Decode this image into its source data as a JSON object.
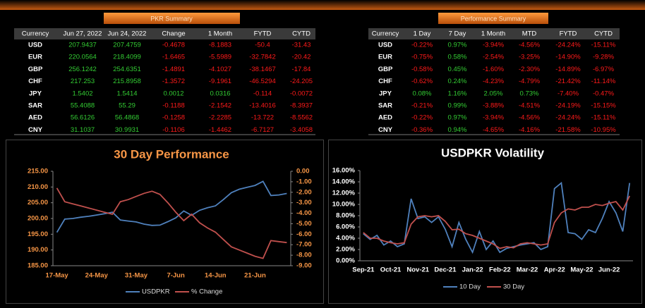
{
  "pkr_summary": {
    "title": "PKR Summary",
    "columns": [
      "Currency",
      "Jun 27, 2022",
      "Jun 24, 2022",
      "Change",
      "1 Month",
      "FYTD",
      "CYTD"
    ],
    "rows": [
      [
        "USD",
        "207.9437",
        "207.4759",
        "-0.4678",
        "-8.1883",
        "-50.4",
        "-31.43"
      ],
      [
        "EUR",
        "220.0564",
        "218.4099",
        "-1.6465",
        "-5.5989",
        "-32.7842",
        "-20.42"
      ],
      [
        "GBP",
        "256.1242",
        "254.6351",
        "-1.4891",
        "-4.1027",
        "-38.1467",
        "-17.84"
      ],
      [
        "CHF",
        "217.253",
        "215.8958",
        "-1.3572",
        "-9.1961",
        "-46.5294",
        "-24.205"
      ],
      [
        "JPY",
        "1.5402",
        "1.5414",
        "0.0012",
        "0.0316",
        "-0.114",
        "-0.0072"
      ],
      [
        "SAR",
        "55.4088",
        "55.29",
        "-0.1188",
        "-2.1542",
        "-13.4016",
        "-8.3937"
      ],
      [
        "AED",
        "56.6126",
        "56.4868",
        "-0.1258",
        "-2.2285",
        "-13.722",
        "-8.5562"
      ],
      [
        "CNY",
        "31.1037",
        "30.9931",
        "-0.1106",
        "-1.4462",
        "-6.7127",
        "-3.4058"
      ]
    ]
  },
  "performance_summary": {
    "title": "Performance Summary",
    "columns": [
      "Currency",
      "1 Day",
      "7 Day",
      "1 Month",
      "MTD",
      "FYTD",
      "CYTD"
    ],
    "rows": [
      [
        "USD",
        "-0.22%",
        "0.97%",
        "-3.94%",
        "-4.56%",
        "-24.24%",
        "-15.11%"
      ],
      [
        "EUR",
        "-0.75%",
        "0.58%",
        "-2.54%",
        "-3.25%",
        "-14.90%",
        "-9.28%"
      ],
      [
        "GBP",
        "-0.58%",
        "0.45%",
        "-1.60%",
        "-2.30%",
        "-14.89%",
        "-6.97%"
      ],
      [
        "CHF",
        "-0.62%",
        "0.24%",
        "-4.23%",
        "-4.79%",
        "-21.42%",
        "-11.14%"
      ],
      [
        "JPY",
        "0.08%",
        "1.16%",
        "2.05%",
        "0.73%",
        "-7.40%",
        "-0.47%"
      ],
      [
        "SAR",
        "-0.21%",
        "0.99%",
        "-3.88%",
        "-4.51%",
        "-24.19%",
        "-15.15%"
      ],
      [
        "AED",
        "-0.22%",
        "0.97%",
        "-3.94%",
        "-4.56%",
        "-24.24%",
        "-15.11%"
      ],
      [
        "CNY",
        "-0.36%",
        "0.94%",
        "-4.65%",
        "-4.16%",
        "-21.58%",
        "-10.95%"
      ]
    ]
  },
  "chart_data": [
    {
      "type": "line",
      "title": "30 Day Performance",
      "categories": [
        "17-May",
        null,
        null,
        null,
        null,
        "24-May",
        null,
        null,
        null,
        null,
        "31-May",
        null,
        null,
        null,
        null,
        "7-Jun",
        null,
        null,
        null,
        null,
        "14-Jun",
        null,
        null,
        null,
        null,
        "21-Jun",
        null,
        null,
        null,
        null
      ],
      "series": [
        {
          "name": "USDPKR",
          "color": "#4f81bd",
          "values": [
            195.6,
            199.8,
            200.0,
            200.4,
            200.7,
            201.1,
            201.5,
            202.0,
            199.5,
            199.2,
            198.9,
            198.2,
            197.8,
            197.9,
            199.0,
            200.2,
            202.4,
            201.0,
            202.6,
            203.4,
            204.0,
            206.0,
            208.2,
            209.3,
            209.9,
            210.5,
            211.8,
            207.3,
            207.48,
            207.94
          ]
        },
        {
          "name": "% Change",
          "color": "#c0504d",
          "axis": "y2",
          "values": [
            -1.6,
            -2.9,
            -3.1,
            -3.3,
            -3.5,
            -3.7,
            -3.9,
            -4.1,
            -2.9,
            -2.7,
            -2.4,
            -2.1,
            -1.9,
            -2.2,
            -3.0,
            -3.9,
            -4.7,
            -4.1,
            -4.9,
            -5.4,
            -5.8,
            -6.5,
            -7.2,
            -7.5,
            -7.8,
            -8.1,
            -8.3,
            -6.6,
            -6.7,
            -6.8
          ]
        }
      ],
      "ylim": [
        185,
        215
      ],
      "yticks": [
        {
          "value": 185,
          "label": "185.00"
        },
        {
          "value": 190,
          "label": "190.00"
        },
        {
          "value": 195,
          "label": "195.00"
        },
        {
          "value": 200,
          "label": "200.00"
        },
        {
          "value": 205,
          "label": "205.00"
        },
        {
          "value": 210,
          "label": "210.00"
        },
        {
          "value": 215,
          "label": "215.00"
        }
      ],
      "y2lim": [
        -9,
        0
      ],
      "y2ticks": [
        {
          "value": 0,
          "label": "0.00"
        },
        {
          "value": -1,
          "label": "-1.00"
        },
        {
          "value": -2,
          "label": "-2.00"
        },
        {
          "value": -3,
          "label": "-3.00"
        },
        {
          "value": -4,
          "label": "-4.00"
        },
        {
          "value": -5,
          "label": "-5.00"
        },
        {
          "value": -6,
          "label": "-6.00"
        },
        {
          "value": -7,
          "label": "-7.00"
        },
        {
          "value": -8,
          "label": "-8.00"
        },
        {
          "value": -9,
          "label": "-9.00"
        }
      ]
    },
    {
      "type": "line",
      "title": "USDPKR Volatility",
      "categories": [
        "Sep-21",
        null,
        null,
        null,
        "Oct-21",
        null,
        null,
        null,
        "Nov-21",
        null,
        null,
        null,
        "Dec-21",
        null,
        null,
        null,
        "Jan-22",
        null,
        null,
        null,
        "Feb-22",
        null,
        null,
        null,
        "Mar-22",
        null,
        null,
        null,
        "Apr-22",
        null,
        null,
        null,
        "May-22",
        null,
        null,
        null,
        "Jun-22",
        null,
        null,
        null
      ],
      "series": [
        {
          "name": "10 Day",
          "color": "#4f81bd",
          "values": [
            4.8,
            3.8,
            4.5,
            2.8,
            3.5,
            2.5,
            3.0,
            11.0,
            7.5,
            7.8,
            6.8,
            7.8,
            5.6,
            2.5,
            6.8,
            3.8,
            1.5,
            5.2,
            2.0,
            3.5,
            1.5,
            2.2,
            2.5,
            2.8,
            3.0,
            3.2,
            2.0,
            2.5,
            12.8,
            13.8,
            5.0,
            4.8,
            3.8,
            5.5,
            5.0,
            7.5,
            10.5,
            8.5,
            5.2,
            13.8
          ]
        },
        {
          "name": "30 Day",
          "color": "#c0504d",
          "values": [
            5.0,
            4.0,
            4.0,
            3.5,
            3.2,
            3.0,
            3.2,
            6.5,
            7.8,
            8.0,
            7.8,
            8.0,
            7.0,
            5.5,
            5.6,
            4.8,
            4.5,
            4.0,
            3.5,
            3.0,
            2.2,
            2.5,
            2.3,
            3.0,
            3.2,
            3.0,
            2.8,
            3.0,
            6.8,
            8.5,
            9.2,
            9.0,
            9.5,
            9.5,
            10.0,
            9.8,
            10.2,
            10.5,
            9.0,
            11.5
          ]
        }
      ],
      "ylim": [
        0,
        16
      ],
      "yticks": [
        {
          "value": 0,
          "label": "0.00%"
        },
        {
          "value": 2,
          "label": "2.00%"
        },
        {
          "value": 4,
          "label": "4.00%"
        },
        {
          "value": 6,
          "label": "6.00%"
        },
        {
          "value": 8,
          "label": "8.00%"
        },
        {
          "value": 10,
          "label": "10.00%"
        },
        {
          "value": 12,
          "label": "12.00%"
        },
        {
          "value": 14,
          "label": "14.00%"
        },
        {
          "value": 16,
          "label": "16.00%"
        }
      ]
    }
  ]
}
